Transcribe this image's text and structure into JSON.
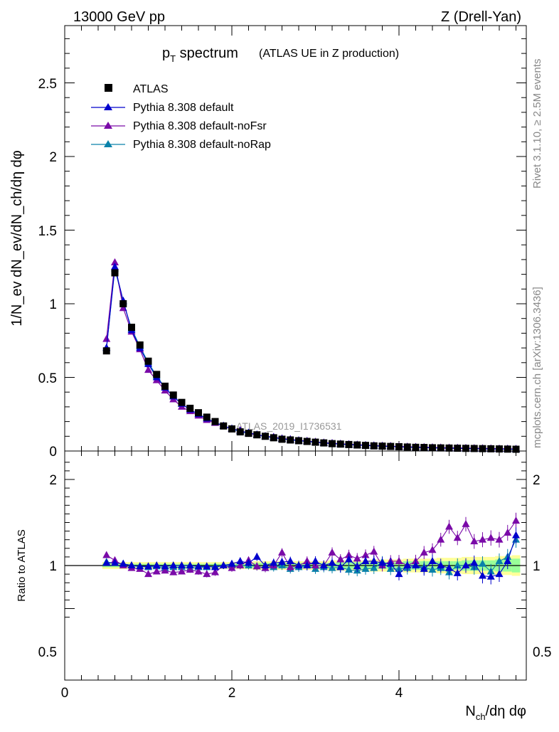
{
  "header": {
    "left": "13000 GeV pp",
    "right": "Z (Drell-Yan)"
  },
  "side": {
    "rivet": "Rivet 3.1.10, ≥ 2.5M events",
    "mcplots": "mcplots.cern.ch [arXiv:1306.3436]"
  },
  "analysis_tag": "ATLAS_2019_I1736531",
  "colors": {
    "data": "#000000",
    "default": "#0000cc",
    "noFsr": "#7a0aa8",
    "noRap": "#0a82aa",
    "band_outer": "#ffff99",
    "band_inner": "#99ff99"
  },
  "chart_data": [
    {
      "type": "scatter",
      "title_main": "p",
      "title_sub": "T",
      "title_rest": " spectrum",
      "title_note": "(ATLAS UE in Z production)",
      "ylabel": "1/N_ev dN_ev/dN_ch/dη dφ",
      "ylim": [
        0,
        2.9
      ],
      "xlim": [
        0,
        5.5
      ],
      "yticks": [
        "0",
        "0.5",
        "1",
        "1.5",
        "2",
        "2.5"
      ],
      "legend_position": "top-left",
      "x": [
        0.5,
        0.6,
        0.7,
        0.8,
        0.9,
        1.0,
        1.1,
        1.2,
        1.3,
        1.4,
        1.5,
        1.6,
        1.7,
        1.8,
        1.9,
        2.0,
        2.1,
        2.2,
        2.3,
        2.4,
        2.5,
        2.6,
        2.7,
        2.8,
        2.9,
        3.0,
        3.1,
        3.2,
        3.3,
        3.4,
        3.5,
        3.6,
        3.7,
        3.8,
        3.9,
        4.0,
        4.1,
        4.2,
        4.3,
        4.4,
        4.5,
        4.6,
        4.7,
        4.8,
        4.9,
        5.0,
        5.1,
        5.2,
        5.3,
        5.4
      ],
      "series": [
        {
          "name": "ATLAS",
          "values": [
            0.68,
            1.21,
            1.0,
            0.84,
            0.72,
            0.61,
            0.52,
            0.44,
            0.38,
            0.33,
            0.29,
            0.26,
            0.23,
            0.2,
            0.17,
            0.15,
            0.13,
            0.12,
            0.11,
            0.1,
            0.09,
            0.08,
            0.075,
            0.07,
            0.065,
            0.06,
            0.055,
            0.05,
            0.047,
            0.044,
            0.041,
            0.038,
            0.035,
            0.033,
            0.031,
            0.029,
            0.027,
            0.025,
            0.024,
            0.022,
            0.021,
            0.02,
            0.019,
            0.018,
            0.017,
            0.016,
            0.015,
            0.014,
            0.013,
            0.012
          ]
        },
        {
          "name": "Pythia 8.308 default",
          "values": [
            0.7,
            1.25,
            1.02,
            0.82,
            0.7,
            0.59,
            0.5,
            0.43,
            0.37,
            0.32,
            0.28,
            0.25,
            0.22,
            0.195,
            0.17,
            0.152,
            0.135,
            0.124,
            0.112,
            0.1,
            0.092,
            0.083,
            0.077,
            0.071,
            0.066,
            0.06,
            0.055,
            0.051,
            0.047,
            0.044,
            0.041,
            0.038,
            0.036,
            0.033,
            0.031,
            0.028,
            0.026,
            0.025,
            0.023,
            0.022,
            0.02,
            0.019,
            0.018,
            0.017,
            0.016,
            0.015,
            0.014,
            0.013,
            0.013,
            0.012
          ]
        },
        {
          "name": "Pythia 8.308 default-noFsr",
          "values": [
            0.76,
            1.28,
            0.97,
            0.81,
            0.69,
            0.55,
            0.48,
            0.41,
            0.35,
            0.3,
            0.27,
            0.24,
            0.21,
            0.19,
            0.17,
            0.15,
            0.14,
            0.12,
            0.11,
            0.1,
            0.095,
            0.085,
            0.08,
            0.072,
            0.068,
            0.062,
            0.057,
            0.053,
            0.049,
            0.046,
            0.043,
            0.04,
            0.037,
            0.035,
            0.033,
            0.031,
            0.029,
            0.027,
            0.026,
            0.024,
            0.023,
            0.022,
            0.021,
            0.02,
            0.019,
            0.018,
            0.017,
            0.016,
            0.015,
            0.014
          ]
        },
        {
          "name": "Pythia 8.308 default-noRap",
          "values": [
            0.7,
            1.24,
            1.01,
            0.83,
            0.71,
            0.6,
            0.51,
            0.43,
            0.37,
            0.32,
            0.28,
            0.25,
            0.22,
            0.195,
            0.17,
            0.15,
            0.132,
            0.12,
            0.108,
            0.098,
            0.09,
            0.082,
            0.075,
            0.07,
            0.064,
            0.059,
            0.054,
            0.05,
            0.046,
            0.043,
            0.04,
            0.037,
            0.034,
            0.032,
            0.03,
            0.028,
            0.026,
            0.024,
            0.023,
            0.021,
            0.02,
            0.019,
            0.018,
            0.017,
            0.016,
            0.015,
            0.014,
            0.013,
            0.012,
            0.011
          ]
        }
      ]
    },
    {
      "type": "scatter",
      "ylabel": "Ratio to ATLAS",
      "xlabel_main": "N",
      "xlabel_sub": "ch",
      "xlabel_rest": "/dη dφ",
      "ylim": [
        0.35,
        2.3
      ],
      "xlim": [
        0,
        5.5
      ],
      "yticks": [
        "0.5",
        "1",
        "2"
      ],
      "xticks": [
        "0",
        "2",
        "4"
      ],
      "x": [
        0.5,
        0.6,
        0.7,
        0.8,
        0.9,
        1.0,
        1.1,
        1.2,
        1.3,
        1.4,
        1.5,
        1.6,
        1.7,
        1.8,
        1.9,
        2.0,
        2.1,
        2.2,
        2.3,
        2.4,
        2.5,
        2.6,
        2.7,
        2.8,
        2.9,
        3.0,
        3.1,
        3.2,
        3.3,
        3.4,
        3.5,
        3.6,
        3.7,
        3.8,
        3.9,
        4.0,
        4.1,
        4.2,
        4.3,
        4.4,
        4.5,
        4.6,
        4.7,
        4.8,
        4.9,
        5.0,
        5.1,
        5.2,
        5.3,
        5.4
      ],
      "band_inner": [
        0.02,
        0.02,
        0.02,
        0.02,
        0.02,
        0.02,
        0.02,
        0.02,
        0.02,
        0.02,
        0.02,
        0.02,
        0.02,
        0.02,
        0.02,
        0.02,
        0.02,
        0.02,
        0.03,
        0.03,
        0.03,
        0.03,
        0.03,
        0.03,
        0.03,
        0.03,
        0.03,
        0.03,
        0.04,
        0.04,
        0.04,
        0.04,
        0.04,
        0.04,
        0.04,
        0.04,
        0.05,
        0.05,
        0.05,
        0.05,
        0.05,
        0.05,
        0.05,
        0.06,
        0.06,
        0.06,
        0.06,
        0.07,
        0.07,
        0.08
      ],
      "band_outer": [
        0.04,
        0.04,
        0.04,
        0.04,
        0.04,
        0.04,
        0.04,
        0.04,
        0.04,
        0.04,
        0.04,
        0.04,
        0.04,
        0.04,
        0.04,
        0.04,
        0.04,
        0.04,
        0.05,
        0.05,
        0.05,
        0.05,
        0.05,
        0.05,
        0.05,
        0.05,
        0.05,
        0.06,
        0.06,
        0.06,
        0.06,
        0.06,
        0.07,
        0.07,
        0.07,
        0.07,
        0.08,
        0.08,
        0.08,
        0.08,
        0.09,
        0.09,
        0.09,
        0.1,
        0.1,
        0.1,
        0.1,
        0.11,
        0.11,
        0.12
      ],
      "series": [
        {
          "name": "Pythia 8.308 default",
          "values": [
            1.03,
            1.03,
            1.02,
            1.0,
            0.99,
            0.99,
            1.0,
            0.99,
            1.0,
            1.0,
            1.0,
            0.99,
            0.99,
            0.98,
            1.0,
            1.02,
            1.05,
            1.03,
            1.1,
            1.0,
            1.03,
            1.04,
            1.05,
            1.0,
            1.0,
            1.05,
            1.0,
            1.03,
            0.98,
            1.07,
            0.99,
            1.05,
            1.05,
            1.03,
            1.02,
            0.9,
            1.0,
            1.0,
            0.96,
            1.05,
            1.0,
            0.97,
            0.91,
            1.0,
            1.03,
            0.88,
            0.87,
            0.9,
            1.05,
            1.35
          ]
        },
        {
          "name": "Pythia 8.308 default-noFsr",
          "values": [
            1.12,
            1.06,
            1.0,
            0.97,
            0.96,
            0.9,
            0.93,
            0.94,
            0.92,
            0.93,
            0.95,
            0.93,
            0.9,
            0.92,
            1.0,
            0.97,
            1.0,
            1.06,
            0.99,
            0.97,
            1.0,
            1.15,
            0.98,
            1.0,
            1.05,
            1.0,
            1.0,
            1.15,
            1.07,
            1.12,
            1.08,
            1.12,
            1.16,
            1.0,
            1.05,
            1.05,
            1.0,
            1.05,
            1.15,
            1.18,
            1.3,
            1.45,
            1.32,
            1.48,
            1.28,
            1.3,
            1.32,
            1.3,
            1.38,
            1.52
          ]
        },
        {
          "name": "Pythia 8.308 default-noRap",
          "values": [
            1.04,
            1.03,
            1.02,
            1.0,
            0.99,
            0.98,
            0.99,
            0.97,
            0.98,
            0.98,
            0.97,
            0.98,
            0.98,
            0.99,
            1.0,
            1.0,
            1.0,
            1.0,
            0.99,
            0.97,
            0.98,
            1.0,
            0.96,
            0.98,
            1.0,
            0.96,
            0.98,
            0.97,
            0.98,
            0.95,
            0.94,
            0.96,
            0.97,
            1.04,
            0.96,
            0.96,
            0.97,
            1.0,
            0.98,
            0.95,
            0.97,
            0.92,
            1.0,
            1.0,
            0.98,
            1.02,
            0.93,
            1.05,
            1.1,
            1.3
          ]
        }
      ]
    }
  ]
}
